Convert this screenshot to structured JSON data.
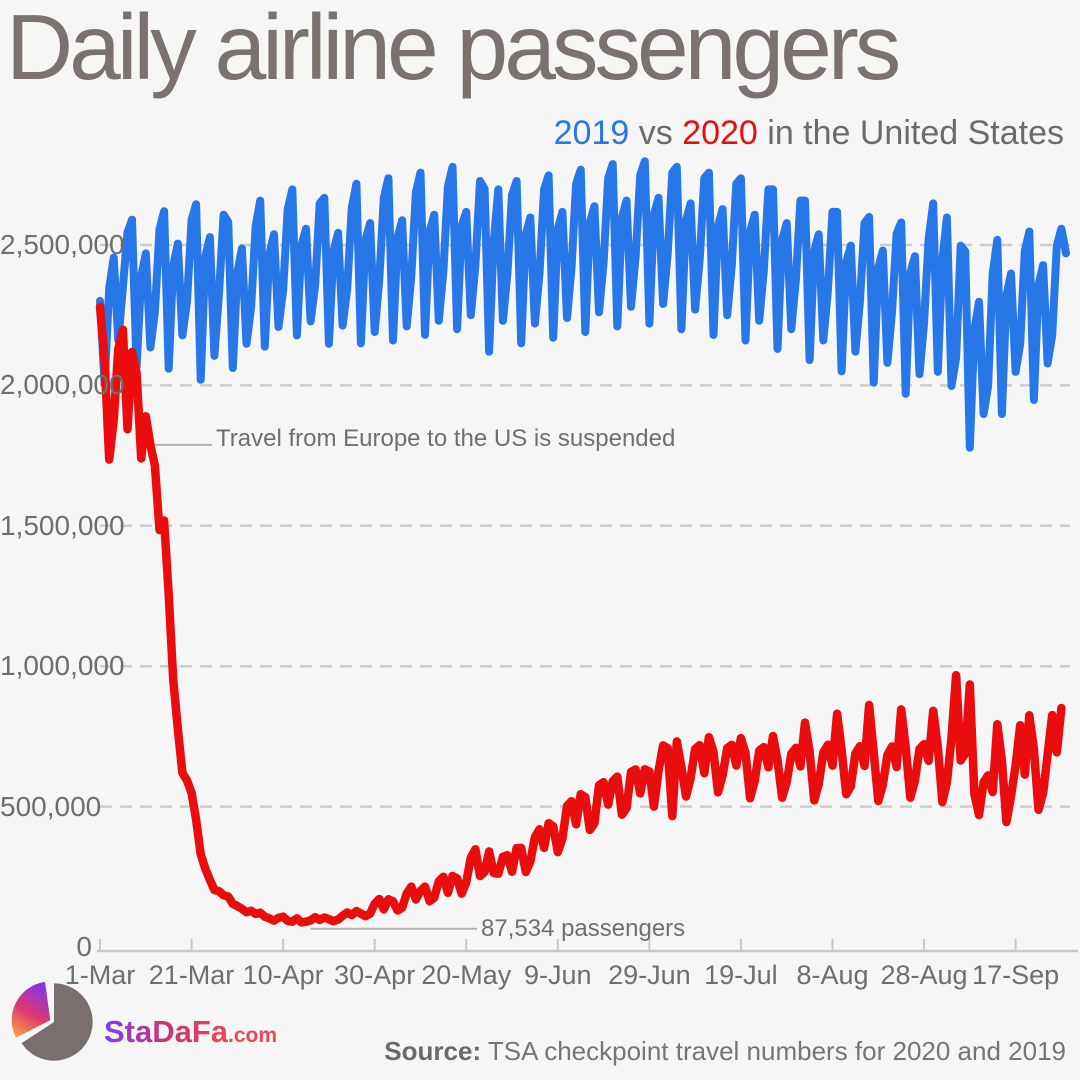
{
  "title": "Daily airline passengers",
  "subtitle": {
    "year1": "2019",
    "vs": " vs ",
    "year2": "2020",
    "rest": " in the United States"
  },
  "colors": {
    "background": "#f6f6f6",
    "series_2019_blue": "#2777e8",
    "series_2020_red": "#e90d0d",
    "title_gray": "#7b7270",
    "axis_text_gray": "#6e6e6e",
    "grid_gray": "#cdcdcd",
    "axis_line_gray": "#c9c9c9",
    "annotation_gray": "#6f6f6f",
    "leader_line_gray": "#b3b3b3",
    "logo_gradient": [
      "#7d3cf0",
      "#c9356f",
      "#ef4854"
    ],
    "pie_gray": "#786f6e"
  },
  "chart_data": {
    "type": "line",
    "title": "Daily airline passengers",
    "subtitle": "2019 vs 2020 in the United States",
    "x_unit": "day offset from 1-Mar",
    "values_unit": "passengers (thousands)",
    "grid": "dashed horizontal",
    "y_axis": {
      "range_k": [
        0,
        2900
      ],
      "ticks": [
        {
          "value_k": 0,
          "label": "0"
        },
        {
          "value_k": 500,
          "label": "500,000"
        },
        {
          "value_k": 1000,
          "label": "1,000,000"
        },
        {
          "value_k": 1500,
          "label": "1,500,000"
        },
        {
          "value_k": 2000,
          "label": "2,000,000"
        },
        {
          "value_k": 2500,
          "label": "2,500,000"
        }
      ]
    },
    "x_axis": {
      "ticks": [
        {
          "day": 0,
          "label": "1-Mar"
        },
        {
          "day": 20,
          "label": "21-Mar"
        },
        {
          "day": 40,
          "label": "10-Apr"
        },
        {
          "day": 60,
          "label": "30-Apr"
        },
        {
          "day": 80,
          "label": "20-May"
        },
        {
          "day": 100,
          "label": "9-Jun"
        },
        {
          "day": 120,
          "label": "29-Jun"
        },
        {
          "day": 140,
          "label": "19-Jul"
        },
        {
          "day": 160,
          "label": "8-Aug"
        },
        {
          "day": 180,
          "label": "28-Aug"
        },
        {
          "day": 200,
          "label": "17-Sep"
        }
      ]
    },
    "series": [
      {
        "name": "2019",
        "color": "#2777e8",
        "stroke_width": 8,
        "start_day": 0,
        "values_k": [
          2301,
          2005,
          2345,
          2455,
          2160,
          2350,
          2545,
          2590,
          2065,
          2388,
          2470,
          2135,
          2262,
          2556,
          2620,
          2060,
          2425,
          2505,
          2178,
          2298,
          2590,
          2645,
          2020,
          2458,
          2528,
          2105,
          2328,
          2608,
          2582,
          2062,
          2400,
          2488,
          2148,
          2278,
          2568,
          2658,
          2138,
          2468,
          2538,
          2208,
          2338,
          2628,
          2698,
          2178,
          2498,
          2558,
          2228,
          2358,
          2648,
          2668,
          2148,
          2478,
          2543,
          2213,
          2343,
          2633,
          2718,
          2150,
          2518,
          2578,
          2190,
          2378,
          2668,
          2738,
          2160,
          2528,
          2588,
          2210,
          2388,
          2688,
          2758,
          2180,
          2548,
          2608,
          2230,
          2408,
          2708,
          2778,
          2200,
          2568,
          2618,
          2250,
          2428,
          2728,
          2700,
          2120,
          2510,
          2698,
          2230,
          2398,
          2678,
          2728,
          2150,
          2538,
          2598,
          2220,
          2398,
          2698,
          2748,
          2170,
          2558,
          2618,
          2240,
          2418,
          2718,
          2768,
          2190,
          2578,
          2638,
          2260,
          2438,
          2738,
          2788,
          2210,
          2598,
          2658,
          2280,
          2458,
          2748,
          2798,
          2220,
          2608,
          2668,
          2290,
          2468,
          2758,
          2778,
          2200,
          2588,
          2648,
          2270,
          2448,
          2738,
          2758,
          2180,
          2568,
          2628,
          2250,
          2428,
          2718,
          2738,
          2160,
          2548,
          2608,
          2230,
          2408,
          2698,
          2698,
          2130,
          2518,
          2578,
          2200,
          2378,
          2658,
          2658,
          2090,
          2478,
          2538,
          2160,
          2338,
          2618,
          2618,
          2050,
          2438,
          2498,
          2120,
          2298,
          2578,
          2600,
          2010,
          2420,
          2480,
          2080,
          2260,
          2540,
          2580,
          1970,
          2400,
          2460,
          2040,
          2220,
          2520,
          2648,
          2048,
          2448,
          2598,
          1998,
          2098,
          2498,
          2478,
          1778,
          2198,
          2298,
          1898,
          1998,
          2398,
          2518,
          1898,
          2318,
          2398,
          2048,
          2148,
          2478,
          2548,
          1948,
          2358,
          2428,
          2078,
          2178,
          2498,
          2558,
          2470
        ]
      },
      {
        "name": "2020",
        "color": "#e90d0d",
        "stroke_width": 8.5,
        "start_day": 0,
        "values_k": [
          2280,
          2089,
          1736,
          1877,
          2130,
          2198,
          1844,
          2119,
          2044,
          1740,
          1890,
          1788,
          1714,
          1485,
          1519,
          1257,
          953,
          779,
          620,
          593,
          548,
          454,
          331,
          279,
          239,
          203,
          199,
          184,
          180,
          154,
          146,
          136,
          124,
          129,
          118,
          122,
          108,
          102,
          94,
          104,
          108,
          93,
          90,
          102,
          87.534,
          90,
          95,
          106,
          97,
          105,
          99,
          92,
          98,
          111,
          123,
          114,
          128,
          119,
          110,
          119,
          154,
          171,
          134,
          170,
          163,
          130,
          140,
          190,
          215,
          169,
          200,
          215,
          163,
          176,
          234,
          250,
          193,
          253,
          244,
          190,
          230,
          318,
          348,
          253,
          267,
          340,
          264,
          261,
          321,
          327,
          268,
          352,
          353,
          267,
          304,
          391,
          419,
          353,
          441,
          430,
          338,
          386,
          502,
          519,
          437,
          544,
          534,
          417,
          441,
          576,
          587,
          507,
          590,
          607,
          471,
          494,
          623,
          632,
          547,
          633,
          625,
          500,
          626,
          718,
          708,
          466,
          732,
          641,
          536,
          601,
          705,
          719,
          619,
          747,
          695,
          551,
          611,
          708,
          720,
          646,
          744,
          691,
          530,
          592,
          699,
          712,
          640,
          751,
          666,
          532,
          587,
          688,
          709,
          643,
          799,
          696,
          522,
          580,
          693,
          720,
          646,
          831,
          702,
          544,
          572,
          689,
          715,
          645,
          862,
          694,
          520,
          577,
          684,
          714,
          641,
          846,
          711,
          532,
          592,
          705,
          722,
          663,
          841,
          713,
          516,
          587,
          744,
          968,
          664,
          689,
          935,
          544,
          470,
          587,
          611,
          552,
          793,
          663,
          445,
          537,
          646,
          790,
          614,
          825,
          704,
          489,
          548,
          685,
          826,
          693,
          851
        ]
      }
    ],
    "annotations": [
      {
        "text": "Travel from Europe to the US is suspended",
        "attach_day": 11,
        "attach_value_k": 1788
      },
      {
        "text": "87,534 passengers",
        "attach_day": 46,
        "attach_value_k": 65
      }
    ]
  },
  "footer": {
    "logo_text": "StaDaFa",
    "logo_suffix": ".com",
    "source_label": "Source:",
    "source_text": " TSA checkpoint travel numbers for 2020 and 2019"
  }
}
